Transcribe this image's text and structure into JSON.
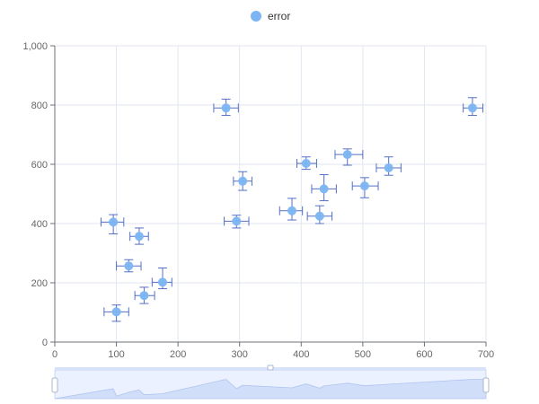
{
  "chart_data": {
    "type": "scatter",
    "title": "",
    "xlabel": "",
    "ylabel": "",
    "xlim": [
      0,
      700
    ],
    "ylim": [
      0,
      1000
    ],
    "x_ticks": [
      "0",
      "100",
      "200",
      "300",
      "400",
      "500",
      "600",
      "700"
    ],
    "y_ticks": [
      "0",
      "200",
      "400",
      "600",
      "800",
      "1,000"
    ],
    "grid": true,
    "legend": {
      "placement": "top-center",
      "entries": [
        "error"
      ]
    },
    "series": [
      {
        "name": "error",
        "points": [
          {
            "x": 100,
            "y": 102,
            "xerr": [
              80,
              120
            ],
            "yerr": [
              70,
              125
            ]
          },
          {
            "x": 145,
            "y": 157,
            "xerr": [
              130,
              162
            ],
            "yerr": [
              130,
              185
            ]
          },
          {
            "x": 175,
            "y": 202,
            "xerr": [
              158,
              190
            ],
            "yerr": [
              180,
              250
            ]
          },
          {
            "x": 120,
            "y": 257,
            "xerr": [
              100,
              140
            ],
            "yerr": [
              237,
              278
            ]
          },
          {
            "x": 137,
            "y": 357,
            "xerr": [
              122,
              152
            ],
            "yerr": [
              330,
              385
            ]
          },
          {
            "x": 95,
            "y": 405,
            "xerr": [
              75,
              112
            ],
            "yerr": [
              365,
              430
            ]
          },
          {
            "x": 278,
            "y": 790,
            "xerr": [
              258,
              298
            ],
            "yerr": [
              765,
              820
            ]
          },
          {
            "x": 295,
            "y": 408,
            "xerr": [
              275,
              315
            ],
            "yerr": [
              385,
              428
            ]
          },
          {
            "x": 305,
            "y": 543,
            "xerr": [
              290,
              320
            ],
            "yerr": [
              512,
              575
            ]
          },
          {
            "x": 385,
            "y": 443,
            "xerr": [
              365,
              402
            ],
            "yerr": [
              412,
              485
            ]
          },
          {
            "x": 408,
            "y": 603,
            "xerr": [
              393,
              425
            ],
            "yerr": [
              583,
              625
            ]
          },
          {
            "x": 430,
            "y": 425,
            "xerr": [
              410,
              450
            ],
            "yerr": [
              400,
              460
            ]
          },
          {
            "x": 437,
            "y": 517,
            "xerr": [
              417,
              457
            ],
            "yerr": [
              477,
              565
            ]
          },
          {
            "x": 475,
            "y": 633,
            "xerr": [
              455,
              500
            ],
            "yerr": [
              597,
              652
            ]
          },
          {
            "x": 503,
            "y": 527,
            "xerr": [
              483,
              525
            ],
            "yerr": [
              487,
              555
            ]
          },
          {
            "x": 542,
            "y": 588,
            "xerr": [
              522,
              562
            ],
            "yerr": [
              563,
              625
            ]
          },
          {
            "x": 678,
            "y": 790,
            "xerr": [
              663,
              695
            ],
            "yerr": [
              765,
              825
            ]
          }
        ]
      }
    ],
    "data_zoom": {
      "range": [
        0,
        100
      ]
    },
    "colors": {
      "point": "#7cb5f2",
      "error_bar": "#5470c6",
      "grid": "#e0e6f1",
      "axis": "#6e7079",
      "zoom_fill": "#dfe8fb",
      "zoom_border": "#d2dbee"
    }
  }
}
